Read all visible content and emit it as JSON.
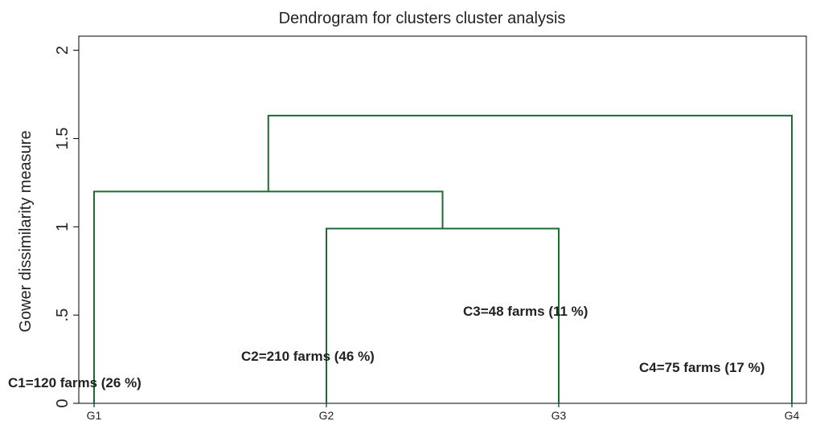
{
  "chart_data": {
    "type": "dendrogram",
    "title": "Dendrogram for clusters cluster analysis",
    "ylabel": "Gower dissimilarity measure",
    "categories": [
      "G1",
      "G2",
      "G3",
      "G4"
    ],
    "merges": [
      {
        "leaves": [
          "G2",
          "G3"
        ],
        "height": 0.99
      },
      {
        "leaves": [
          "G1",
          "G2",
          "G3"
        ],
        "height": 1.2
      },
      {
        "leaves": [
          "G1",
          "G2",
          "G3",
          "G4"
        ],
        "height": 1.63
      }
    ],
    "color": "#1b6b33",
    "ylim": [
      0,
      2.08
    ],
    "yticks": [
      0,
      {
        "value": 0.5,
        "label": ".5"
      },
      1,
      1.5,
      2
    ],
    "annotations": [
      "C1=120 farms (26 %)",
      "C2=210 farms (46 %)",
      "C3=48 farms (11 %)",
      "C4=75 farms (17 %)"
    ]
  }
}
